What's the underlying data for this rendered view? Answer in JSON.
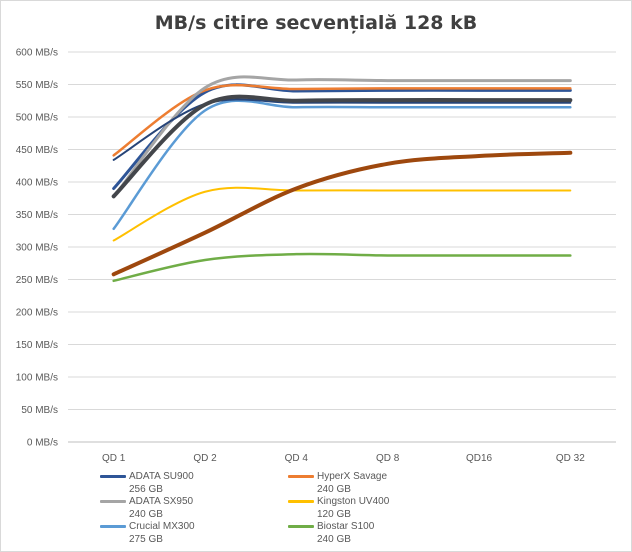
{
  "chart_data": {
    "type": "line",
    "title": "MB/s  citire secvențială  128 kB",
    "xlabel": "",
    "ylabel": "",
    "categories": [
      "QD 1",
      "QD 2",
      "QD 4",
      "QD 8",
      "QD16",
      "QD 32"
    ],
    "y_ticks": [
      "0 MB/s",
      "50 MB/s",
      "100 MB/s",
      "150 MB/s",
      "200 MB/s",
      "250 MB/s",
      "300 MB/s",
      "350 MB/s",
      "400 MB/s",
      "450 MB/s",
      "500 MB/s",
      "550 MB/s",
      "600 MB/s"
    ],
    "ylim": [
      0,
      600
    ],
    "grid": true,
    "legend_position": "bottom",
    "series": [
      {
        "name": "ADATA SU900 256 GB",
        "color": "#2e5597",
        "width": 3,
        "values": [
          390,
          538,
          540,
          541,
          541,
          541
        ]
      },
      {
        "name": "HyperX Savage 240 GB",
        "color": "#ed7d31",
        "width": 2.5,
        "values": [
          441,
          541,
          543,
          544,
          544,
          544
        ]
      },
      {
        "name": "ADATA SX950 240 GB",
        "color": "#a5a5a5",
        "width": 3,
        "values": [
          377,
          545,
          557,
          556,
          556,
          556
        ]
      },
      {
        "name": "Kingston UV400 120 GB",
        "color": "#ffc000",
        "width": 2,
        "values": [
          310,
          385,
          387,
          387,
          387,
          387
        ]
      },
      {
        "name": "Crucial MX300 275 GB",
        "color": "#5b9bd5",
        "width": 2.5,
        "values": [
          328,
          510,
          515,
          515,
          515,
          515
        ]
      },
      {
        "name": "Biostar S100 240 GB",
        "color": "#70ad47",
        "width": 2.5,
        "values": [
          248,
          280,
          289,
          287,
          287,
          287
        ]
      },
      {
        "name": "",
        "color": "#264478",
        "width": 2,
        "values": [
          434,
          520,
          522,
          522,
          522,
          522
        ]
      },
      {
        "name": "",
        "color": "#9e480e",
        "width": 4,
        "values": [
          258,
          322,
          390,
          428,
          440,
          445
        ]
      },
      {
        "name": "",
        "color": "#43464b",
        "width": 4,
        "values": [
          378,
          519,
          525,
          526,
          526,
          526
        ]
      }
    ]
  }
}
